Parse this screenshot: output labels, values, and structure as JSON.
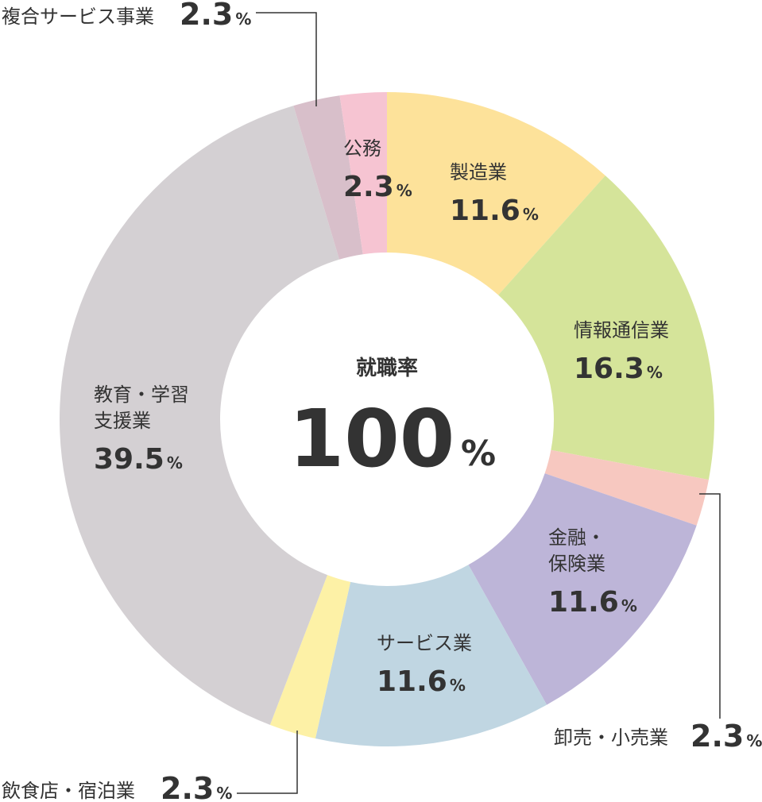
{
  "chart_data": {
    "type": "pie",
    "center": {
      "title": "就職率",
      "value": "100",
      "unit": "%"
    },
    "unit_symbol": "%",
    "slices": [
      {
        "label": "製造業",
        "value": 11.6,
        "color": "#fde29a"
      },
      {
        "label": "情報通信業",
        "value": 16.3,
        "color": "#d5e49a"
      },
      {
        "label": "卸売・小売業",
        "value": 2.3,
        "color": "#f7c8c0"
      },
      {
        "label": "金融・保険業",
        "value": 11.6,
        "color": "#bdb5d8"
      },
      {
        "label": "サービス業",
        "value": 11.6,
        "color": "#c0d6e2"
      },
      {
        "label": "飲食店・宿泊業",
        "value": 2.3,
        "color": "#fdf1a6"
      },
      {
        "label": "教育・学習支援業",
        "value": 39.5,
        "color": "#d4d0d3"
      },
      {
        "label": "複合サービス事業",
        "value": 2.3,
        "color": "#d8bfca"
      },
      {
        "label": "公務",
        "value": 2.3,
        "color": "#f6c4d2"
      }
    ]
  }
}
